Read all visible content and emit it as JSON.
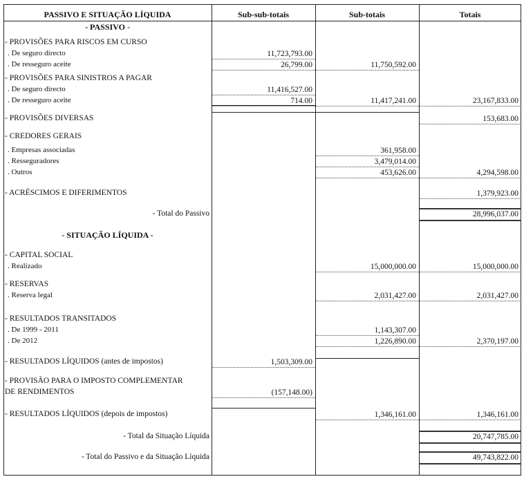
{
  "header": {
    "col_label": "PASSIVO E SITUAÇÃO  LÍQUIDA",
    "col_subsub": "Sub-sub-totais",
    "col_sub": "Sub-totais",
    "col_tot": "Totais"
  },
  "sections": {
    "passivo": "- PASSIVO -",
    "situacao": "- SITUAÇÃO LÍQUIDA -"
  },
  "rows": [
    {
      "label": "- PROVISÕES PARA RISCOS EM CURSO",
      "kind": "head",
      "values": [
        "",
        "",
        ""
      ]
    },
    {
      "label": ". De seguro directo",
      "kind": "sub",
      "values": [
        "11,723,793.00",
        "",
        ""
      ]
    },
    {
      "label": ". De resseguro aceite",
      "kind": "sub",
      "values": [
        "26,799.00",
        "11,750,592.00",
        ""
      ]
    },
    {
      "label": "- PROVISÕES PARA SINISTROS A PAGAR",
      "kind": "head",
      "values": [
        "",
        "",
        ""
      ]
    },
    {
      "label": ". De seguro directo",
      "kind": "sub",
      "values": [
        "11,416,527.00",
        "",
        ""
      ]
    },
    {
      "label": ". De resseguro aceite",
      "kind": "sub",
      "values": [
        "714.00",
        "11,417,241.00",
        "23,167,833.00"
      ]
    },
    {
      "label": "- PROVISÕES DIVERSAS",
      "kind": "head",
      "values": [
        "",
        "",
        "153,683.00"
      ]
    },
    {
      "label": "- CREDORES GERAIS",
      "kind": "head",
      "values": [
        "",
        "",
        ""
      ]
    },
    {
      "label": ". Empresas associadas",
      "kind": "sub",
      "values": [
        "",
        "361,958.00",
        ""
      ]
    },
    {
      "label": ". Resseguradores",
      "kind": "sub",
      "values": [
        "",
        "3,479,014.00",
        ""
      ]
    },
    {
      "label": ". Outros",
      "kind": "sub",
      "values": [
        "",
        "453,626.00",
        "4,294,598.00"
      ]
    },
    {
      "label": "- ACRÉSCIMOS  E  DIFERIMENTOS",
      "kind": "head",
      "values": [
        "",
        "",
        "1,379,923.00"
      ]
    },
    {
      "label": "- Total do Passivo",
      "kind": "total",
      "values": [
        "",
        "",
        "28,996,037.00"
      ]
    },
    {
      "label": "- CAPITAL SOCIAL",
      "kind": "head",
      "values": [
        "",
        "",
        ""
      ]
    },
    {
      "label": ". Realizado",
      "kind": "sub",
      "values": [
        "",
        "15,000,000.00",
        "15,000,000.00"
      ]
    },
    {
      "label": "- RESERVAS",
      "kind": "head",
      "values": [
        "",
        "",
        ""
      ]
    },
    {
      "label": ". Reserva legal",
      "kind": "sub",
      "values": [
        "",
        "2,031,427.00",
        "2,031,427.00"
      ]
    },
    {
      "label": "- RESULTADOS TRANSITADOS",
      "kind": "head",
      "values": [
        "",
        "",
        ""
      ]
    },
    {
      "label": ". De 1999 - 2011",
      "kind": "sub",
      "values": [
        "",
        "1,143,307.00",
        ""
      ]
    },
    {
      "label": ". De 2012",
      "kind": "sub",
      "values": [
        "",
        "1,226,890.00",
        "2,370,197.00"
      ]
    },
    {
      "label": "- RESULTADOS LÍQUIDOS (antes de impostos)",
      "kind": "head",
      "values": [
        "1,503,309.00",
        "",
        ""
      ]
    },
    {
      "label": "- PROVISÃO PARA O IMPOSTO COMPLEMENTAR",
      "kind": "head",
      "values": [
        "",
        "",
        ""
      ]
    },
    {
      "label": "  DE RENDIMENTOS",
      "kind": "head",
      "values": [
        "(157,148.00)",
        "",
        ""
      ]
    },
    {
      "label": "- RESULTADOS LÍQUIDOS (depois de impostos)",
      "kind": "head",
      "values": [
        "",
        "1,346,161.00",
        "1,346,161.00"
      ]
    },
    {
      "label": "- Total da Situação Líquida",
      "kind": "total",
      "values": [
        "",
        "",
        "20,747,785.00"
      ]
    },
    {
      "label": "- Total do Passivo e da Situação Líquida",
      "kind": "total",
      "values": [
        "",
        "",
        "49,743,822.00"
      ]
    }
  ]
}
